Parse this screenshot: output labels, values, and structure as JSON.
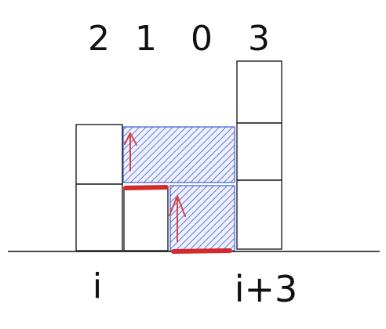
{
  "heights": [
    {
      "label": "2",
      "value": 2
    },
    {
      "label": "1",
      "value": 1
    },
    {
      "label": "0",
      "value": 0
    },
    {
      "label": "3",
      "value": 3
    }
  ],
  "index_labels": {
    "start": "i",
    "end": "i+3"
  },
  "water_fill": {
    "level_1": 2,
    "level_2": 1
  },
  "colors": {
    "block_stroke": "#111111",
    "water_hatch": "#3f5bd8",
    "water_bg": "#eef1ff",
    "marker_red": "#d32a2a",
    "arrow_red": "#d64545"
  }
}
